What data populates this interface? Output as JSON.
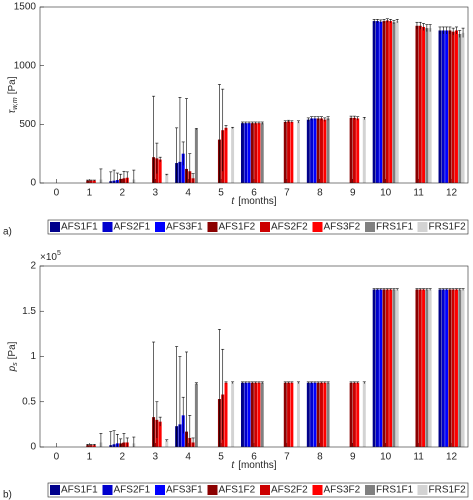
{
  "chart_data": [
    {
      "type": "bar",
      "panel_label": "a)",
      "ylabel": {
        "symbol": "τ",
        "subscript": "w,m",
        "unit": "[Pa]"
      },
      "xlabel": {
        "symbol": "t",
        "unit": "[months]"
      },
      "categories": [
        "0",
        "1",
        "2",
        "3",
        "4",
        "5",
        "6",
        "7",
        "8",
        "9",
        "10",
        "11",
        "12"
      ],
      "ylim": [
        0,
        1500
      ],
      "yticks": [
        0,
        500,
        1000,
        1500
      ],
      "series": [
        {
          "name": "AFS1F1",
          "color": "#00008b",
          "values": [
            null,
            null,
            15,
            null,
            170,
            null,
            510,
            null,
            540,
            null,
            1380,
            null,
            1300
          ],
          "errors": [
            null,
            null,
            80,
            null,
            300,
            null,
            10,
            null,
            15,
            null,
            15,
            null,
            30
          ]
        },
        {
          "name": "AFS2F1",
          "color": "#0000cd",
          "values": [
            null,
            null,
            20,
            null,
            180,
            null,
            510,
            null,
            550,
            null,
            1380,
            null,
            1300
          ],
          "errors": [
            null,
            null,
            90,
            null,
            550,
            null,
            10,
            null,
            15,
            null,
            15,
            null,
            30
          ]
        },
        {
          "name": "AFS3F1",
          "color": "#0000ff",
          "values": [
            null,
            null,
            25,
            null,
            250,
            null,
            510,
            null,
            550,
            null,
            1375,
            null,
            1300
          ],
          "errors": [
            null,
            null,
            60,
            null,
            100,
            null,
            10,
            null,
            15,
            null,
            15,
            null,
            30
          ]
        },
        {
          "name": "AFS1F2",
          "color": "#8b0000",
          "values": [
            null,
            20,
            35,
            220,
            120,
            370,
            510,
            520,
            550,
            555,
            1380,
            1340,
            1300
          ],
          "errors": [
            null,
            5,
            40,
            520,
            600,
            470,
            10,
            10,
            15,
            15,
            15,
            30,
            30
          ]
        },
        {
          "name": "AFS2F2",
          "color": "#cc0000",
          "values": [
            null,
            20,
            40,
            210,
            100,
            450,
            510,
            525,
            550,
            555,
            1385,
            1340,
            1290
          ],
          "errors": [
            null,
            5,
            60,
            130,
            150,
            350,
            10,
            10,
            15,
            15,
            15,
            30,
            30
          ]
        },
        {
          "name": "AFS3F2",
          "color": "#ff0000",
          "values": [
            null,
            20,
            45,
            200,
            40,
            470,
            510,
            520,
            540,
            550,
            1380,
            1330,
            1300
          ],
          "errors": [
            null,
            5,
            50,
            20,
            40,
            20,
            10,
            10,
            15,
            15,
            15,
            30,
            30
          ]
        },
        {
          "name": "FRS1F1",
          "color": "#808080",
          "values": [
            null,
            null,
            null,
            null,
            460,
            null,
            510,
            null,
            550,
            null,
            1370,
            1320,
            1270
          ],
          "errors": [
            null,
            null,
            null,
            null,
            5,
            null,
            10,
            null,
            15,
            null,
            15,
            30,
            30
          ]
        },
        {
          "name": "FRS1F2",
          "color": "#d3d3d3",
          "values": [
            null,
            30,
            30,
            70,
            null,
            470,
            null,
            520,
            null,
            550,
            1380,
            1320,
            1280
          ],
          "errors": [
            null,
            90,
            80,
            5,
            null,
            5,
            null,
            10,
            null,
            10,
            15,
            30,
            40
          ]
        }
      ]
    },
    {
      "type": "bar",
      "panel_label": "b)",
      "ylabel": {
        "symbol": "p",
        "subscript": "s",
        "unit": "[Pa]"
      },
      "xlabel": {
        "symbol": "t",
        "unit": "[months]"
      },
      "y_scale_label": {
        "base": "×10",
        "exponent": "5"
      },
      "categories": [
        "0",
        "1",
        "2",
        "3",
        "4",
        "5",
        "6",
        "7",
        "8",
        "9",
        "10",
        "11",
        "12"
      ],
      "ylim": [
        0,
        2
      ],
      "yticks": [
        0,
        0.5,
        1,
        1.5,
        2
      ],
      "series": [
        {
          "name": "AFS1F1",
          "color": "#00008b",
          "values": [
            null,
            null,
            0.02,
            null,
            0.23,
            null,
            0.71,
            null,
            0.71,
            null,
            1.74,
            null,
            1.74
          ],
          "errors": [
            null,
            null,
            0.15,
            null,
            0.88,
            null,
            0.01,
            null,
            0.01,
            null,
            0.01,
            null,
            0.01
          ]
        },
        {
          "name": "AFS2F1",
          "color": "#0000cd",
          "values": [
            null,
            null,
            0.03,
            null,
            0.25,
            null,
            0.71,
            null,
            0.71,
            null,
            1.74,
            null,
            1.74
          ],
          "errors": [
            null,
            null,
            0.15,
            null,
            0.75,
            null,
            0.01,
            null,
            0.01,
            null,
            0.01,
            null,
            0.01
          ]
        },
        {
          "name": "AFS3F1",
          "color": "#0000ff",
          "values": [
            null,
            null,
            0.04,
            null,
            0.35,
            null,
            0.71,
            null,
            0.71,
            null,
            1.74,
            null,
            1.74
          ],
          "errors": [
            null,
            null,
            0.1,
            null,
            0.2,
            null,
            0.01,
            null,
            0.01,
            null,
            0.01,
            null,
            0.01
          ]
        },
        {
          "name": "AFS1F2",
          "color": "#8b0000",
          "values": [
            null,
            0.02,
            0.04,
            0.33,
            0.17,
            0.53,
            0.71,
            0.71,
            0.71,
            0.71,
            1.74,
            1.74,
            1.74
          ],
          "errors": [
            null,
            0.01,
            0.05,
            0.83,
            0.88,
            0.77,
            0.01,
            0.01,
            0.01,
            0.01,
            0.01,
            0.01,
            0.01
          ]
        },
        {
          "name": "AFS2F2",
          "color": "#cc0000",
          "values": [
            null,
            0.02,
            0.05,
            0.3,
            0.1,
            0.58,
            0.71,
            0.71,
            0.71,
            0.71,
            1.74,
            1.74,
            1.74
          ],
          "errors": [
            null,
            0.01,
            0.1,
            0.2,
            0.25,
            0.5,
            0.01,
            0.01,
            0.01,
            0.01,
            0.01,
            0.01,
            0.01
          ]
        },
        {
          "name": "AFS3F2",
          "color": "#ff0000",
          "values": [
            null,
            0.02,
            0.05,
            0.28,
            0.05,
            0.71,
            0.71,
            0.71,
            0.71,
            0.71,
            1.74,
            1.74,
            1.74
          ],
          "errors": [
            null,
            0.01,
            0.05,
            0.05,
            0.05,
            0.01,
            0.01,
            0.01,
            0.01,
            0.01,
            0.01,
            0.01,
            0.01
          ]
        },
        {
          "name": "FRS1F1",
          "color": "#808080",
          "values": [
            null,
            null,
            null,
            null,
            0.7,
            null,
            0.71,
            null,
            0.71,
            null,
            1.74,
            1.74,
            1.74
          ],
          "errors": [
            null,
            null,
            null,
            null,
            0.01,
            null,
            0.01,
            null,
            0.01,
            null,
            0.01,
            0.01,
            0.01
          ]
        },
        {
          "name": "FRS1F2",
          "color": "#d3d3d3",
          "values": [
            null,
            0.05,
            0.04,
            0.07,
            null,
            0.71,
            null,
            0.71,
            null,
            0.71,
            1.74,
            1.74,
            1.74
          ],
          "errors": [
            null,
            0.1,
            0.07,
            0.01,
            null,
            0.01,
            null,
            0.01,
            null,
            0.01,
            0.01,
            0.01,
            0.01
          ]
        }
      ]
    }
  ]
}
